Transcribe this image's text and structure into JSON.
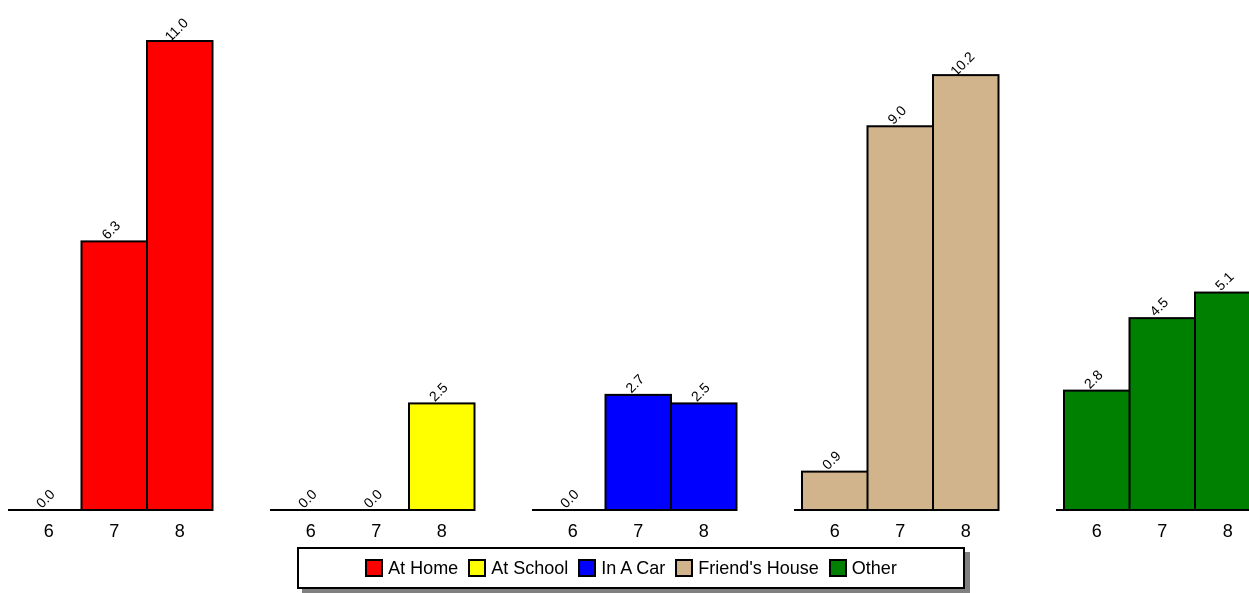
{
  "chart_data": {
    "type": "bar",
    "layout": "grouped-panels",
    "categories": [
      "6",
      "7",
      "8"
    ],
    "series": [
      {
        "name": "At Home",
        "color": "#ff0000",
        "values": [
          0.0,
          6.3,
          11.0
        ],
        "labels": [
          "0.0",
          "6.3",
          "11.0"
        ]
      },
      {
        "name": "At School",
        "color": "#ffff00",
        "values": [
          0.0,
          0.0,
          2.5
        ],
        "labels": [
          "0.0",
          "0.0",
          "2.5"
        ]
      },
      {
        "name": "In A Car",
        "color": "#0000ff",
        "values": [
          0.0,
          2.7,
          2.5
        ],
        "labels": [
          "0.0",
          "2.7",
          "2.5"
        ]
      },
      {
        "name": "Friend's House",
        "color": "#d2b48c",
        "values": [
          0.9,
          9.0,
          10.2
        ],
        "labels": [
          "0.9",
          "9.0",
          "10.2"
        ]
      },
      {
        "name": "Other",
        "color": "#008000",
        "values": [
          2.8,
          4.5,
          5.1
        ],
        "labels": [
          "2.8",
          "4.5",
          "5.1"
        ]
      }
    ],
    "ylim": [
      0,
      11
    ],
    "grid": false,
    "legend_position": "bottom-center"
  }
}
